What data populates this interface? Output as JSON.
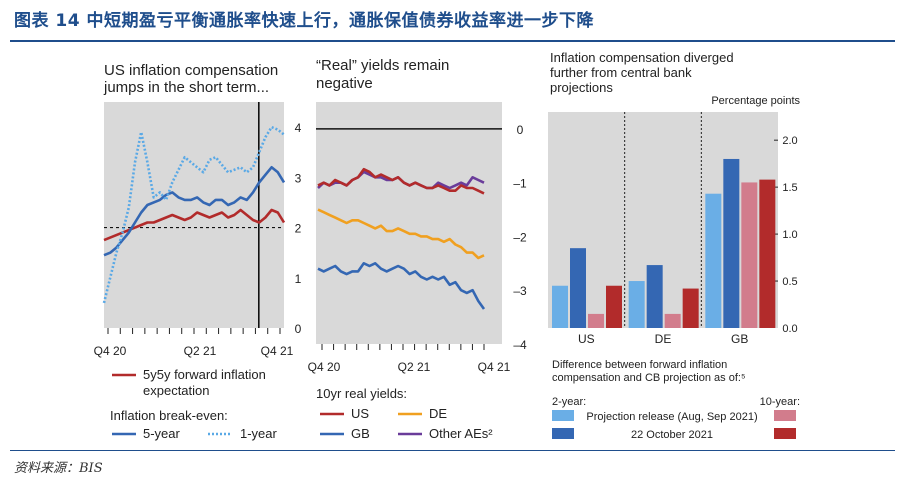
{
  "header": {
    "title": "图表 14   中短期盈亏平衡通胀率快速上行，通胀保值债券收益率进一步下降"
  },
  "footer": {
    "source": "资料来源：BIS"
  },
  "colors": {
    "red": "#b22b2b",
    "blue": "#3467b3",
    "lightblue": "#6aaee6",
    "dotted": "#5aa9e6",
    "orange": "#f0a020",
    "purple": "#6a3c9a",
    "pink": "#d27c8c",
    "grid": "#d9d9d9"
  },
  "chart_data": [
    {
      "type": "line",
      "title": "US inflation compensation jumps in the short term...",
      "x_ticks": [
        "Q4 20",
        "Q2 21",
        "Q4 21"
      ],
      "ylim": [
        0,
        4.5
      ],
      "y_ticks": [
        "0",
        "1",
        "2",
        "3",
        "4"
      ],
      "reference_line": 2,
      "series": [
        {
          "name": "5y5y forward inflation expectation",
          "color": "red",
          "values": [
            1.75,
            1.8,
            1.85,
            1.9,
            1.95,
            2.0,
            2.05,
            2.1,
            2.1,
            2.15,
            2.2,
            2.25,
            2.2,
            2.15,
            2.2,
            2.3,
            2.25,
            2.2,
            2.25,
            2.3,
            2.2,
            2.25,
            2.35,
            2.25,
            2.15,
            2.1,
            2.2,
            2.35,
            2.3,
            2.1
          ]
        },
        {
          "name": "5-year",
          "color": "blue",
          "values": [
            1.45,
            1.5,
            1.6,
            1.75,
            1.9,
            2.1,
            2.3,
            2.45,
            2.5,
            2.55,
            2.65,
            2.7,
            2.6,
            2.55,
            2.55,
            2.6,
            2.5,
            2.45,
            2.55,
            2.55,
            2.45,
            2.5,
            2.6,
            2.55,
            2.7,
            2.9,
            3.05,
            3.2,
            3.1,
            2.9
          ]
        },
        {
          "name": "1-year",
          "color": "dotted",
          "values": [
            0.5,
            1.0,
            1.5,
            1.9,
            2.4,
            3.3,
            3.9,
            3.3,
            2.6,
            2.7,
            2.55,
            2.9,
            3.15,
            3.4,
            3.3,
            3.2,
            3.1,
            3.35,
            3.4,
            3.25,
            3.1,
            3.15,
            3.2,
            3.1,
            3.2,
            3.5,
            3.8,
            4.0,
            3.95,
            3.85
          ]
        }
      ],
      "legend": [
        "5y5y forward inflation",
        "expectation",
        "Inflation break-even:",
        "5-year",
        "1-year"
      ]
    },
    {
      "type": "line",
      "title": "“Real” yields remain negative",
      "x_ticks": [
        "Q4 20",
        "Q2 21",
        "Q4 21"
      ],
      "ylim": [
        -4,
        0.5
      ],
      "y_ticks": [
        "0",
        "–1",
        "–2",
        "–3",
        "–4"
      ],
      "series": [
        {
          "name": "US",
          "color": "red",
          "values": [
            -1.05,
            -1.0,
            -1.05,
            -0.95,
            -1.0,
            -1.05,
            -0.95,
            -0.9,
            -0.75,
            -0.8,
            -0.9,
            -0.85,
            -0.9,
            -0.95,
            -0.9,
            -1.0,
            -1.05,
            -1.0,
            -1.05,
            -1.1,
            -1.1,
            -1.05,
            -1.1,
            -1.15,
            -1.15,
            -1.05,
            -1.1,
            -1.1,
            -1.15,
            -1.2
          ]
        },
        {
          "name": "DE",
          "color": "orange",
          "values": [
            -1.5,
            -1.55,
            -1.6,
            -1.65,
            -1.7,
            -1.75,
            -1.7,
            -1.7,
            -1.75,
            -1.8,
            -1.85,
            -1.8,
            -1.9,
            -1.9,
            -1.85,
            -1.9,
            -1.95,
            -1.95,
            -2.0,
            -2.0,
            -2.05,
            -2.05,
            -2.1,
            -2.05,
            -2.15,
            -2.2,
            -2.3,
            -2.3,
            -2.4,
            -2.35
          ]
        },
        {
          "name": "GB",
          "color": "blue",
          "values": [
            -2.6,
            -2.65,
            -2.6,
            -2.55,
            -2.65,
            -2.7,
            -2.65,
            -2.65,
            -2.5,
            -2.55,
            -2.5,
            -2.6,
            -2.65,
            -2.6,
            -2.55,
            -2.6,
            -2.7,
            -2.65,
            -2.75,
            -2.8,
            -2.75,
            -2.8,
            -2.75,
            -2.9,
            -2.85,
            -3.0,
            -3.05,
            -3.0,
            -3.2,
            -3.35
          ]
        },
        {
          "name": "Other AEs",
          "color": "purple",
          "values": [
            -1.1,
            -1.0,
            -1.05,
            -1.0,
            -1.0,
            -1.05,
            -0.95,
            -0.9,
            -0.8,
            -0.85,
            -0.9,
            -0.9,
            -0.95,
            -0.95,
            -0.9,
            -1.0,
            -1.05,
            -1.0,
            -1.05,
            -1.1,
            -1.1,
            -1.0,
            -1.05,
            -1.1,
            -1.05,
            -1.0,
            -1.05,
            -0.9,
            -0.95,
            -1.0
          ]
        }
      ],
      "legend_title": "10yr real yields:",
      "legend": [
        "US",
        "DE",
        "GB",
        "Other AEs²"
      ]
    },
    {
      "type": "bar",
      "title": "Inflation compensation diverged further from central bank projections",
      "ylabel": "Percentage points",
      "ylim": [
        0,
        2.3
      ],
      "y_ticks": [
        "0.0",
        "0.5",
        "1.0",
        "1.5",
        "2.0"
      ],
      "categories": [
        "US",
        "DE",
        "GB"
      ],
      "series": [
        {
          "name": "2-year, Projection release (Aug, Sep 2021)",
          "color": "lightblue",
          "values": [
            0.45,
            0.5,
            1.43
          ]
        },
        {
          "name": "2-year, 22 October 2021",
          "color": "blue",
          "values": [
            0.85,
            0.67,
            1.8
          ]
        },
        {
          "name": "10-year, Projection release (Aug, Sep 2021)",
          "color": "pink",
          "values": [
            0.15,
            0.15,
            1.55
          ]
        },
        {
          "name": "10-year, 22 October 2021",
          "color": "red",
          "values": [
            0.45,
            0.42,
            1.58
          ]
        }
      ],
      "note": "Difference between forward inflation compensation and CB projection as of:⁵",
      "legend_left": "2-year:",
      "legend_right": "10-year:",
      "legend_rows": [
        "Projection release (Aug, Sep 2021)",
        "22 October 2021"
      ]
    }
  ]
}
